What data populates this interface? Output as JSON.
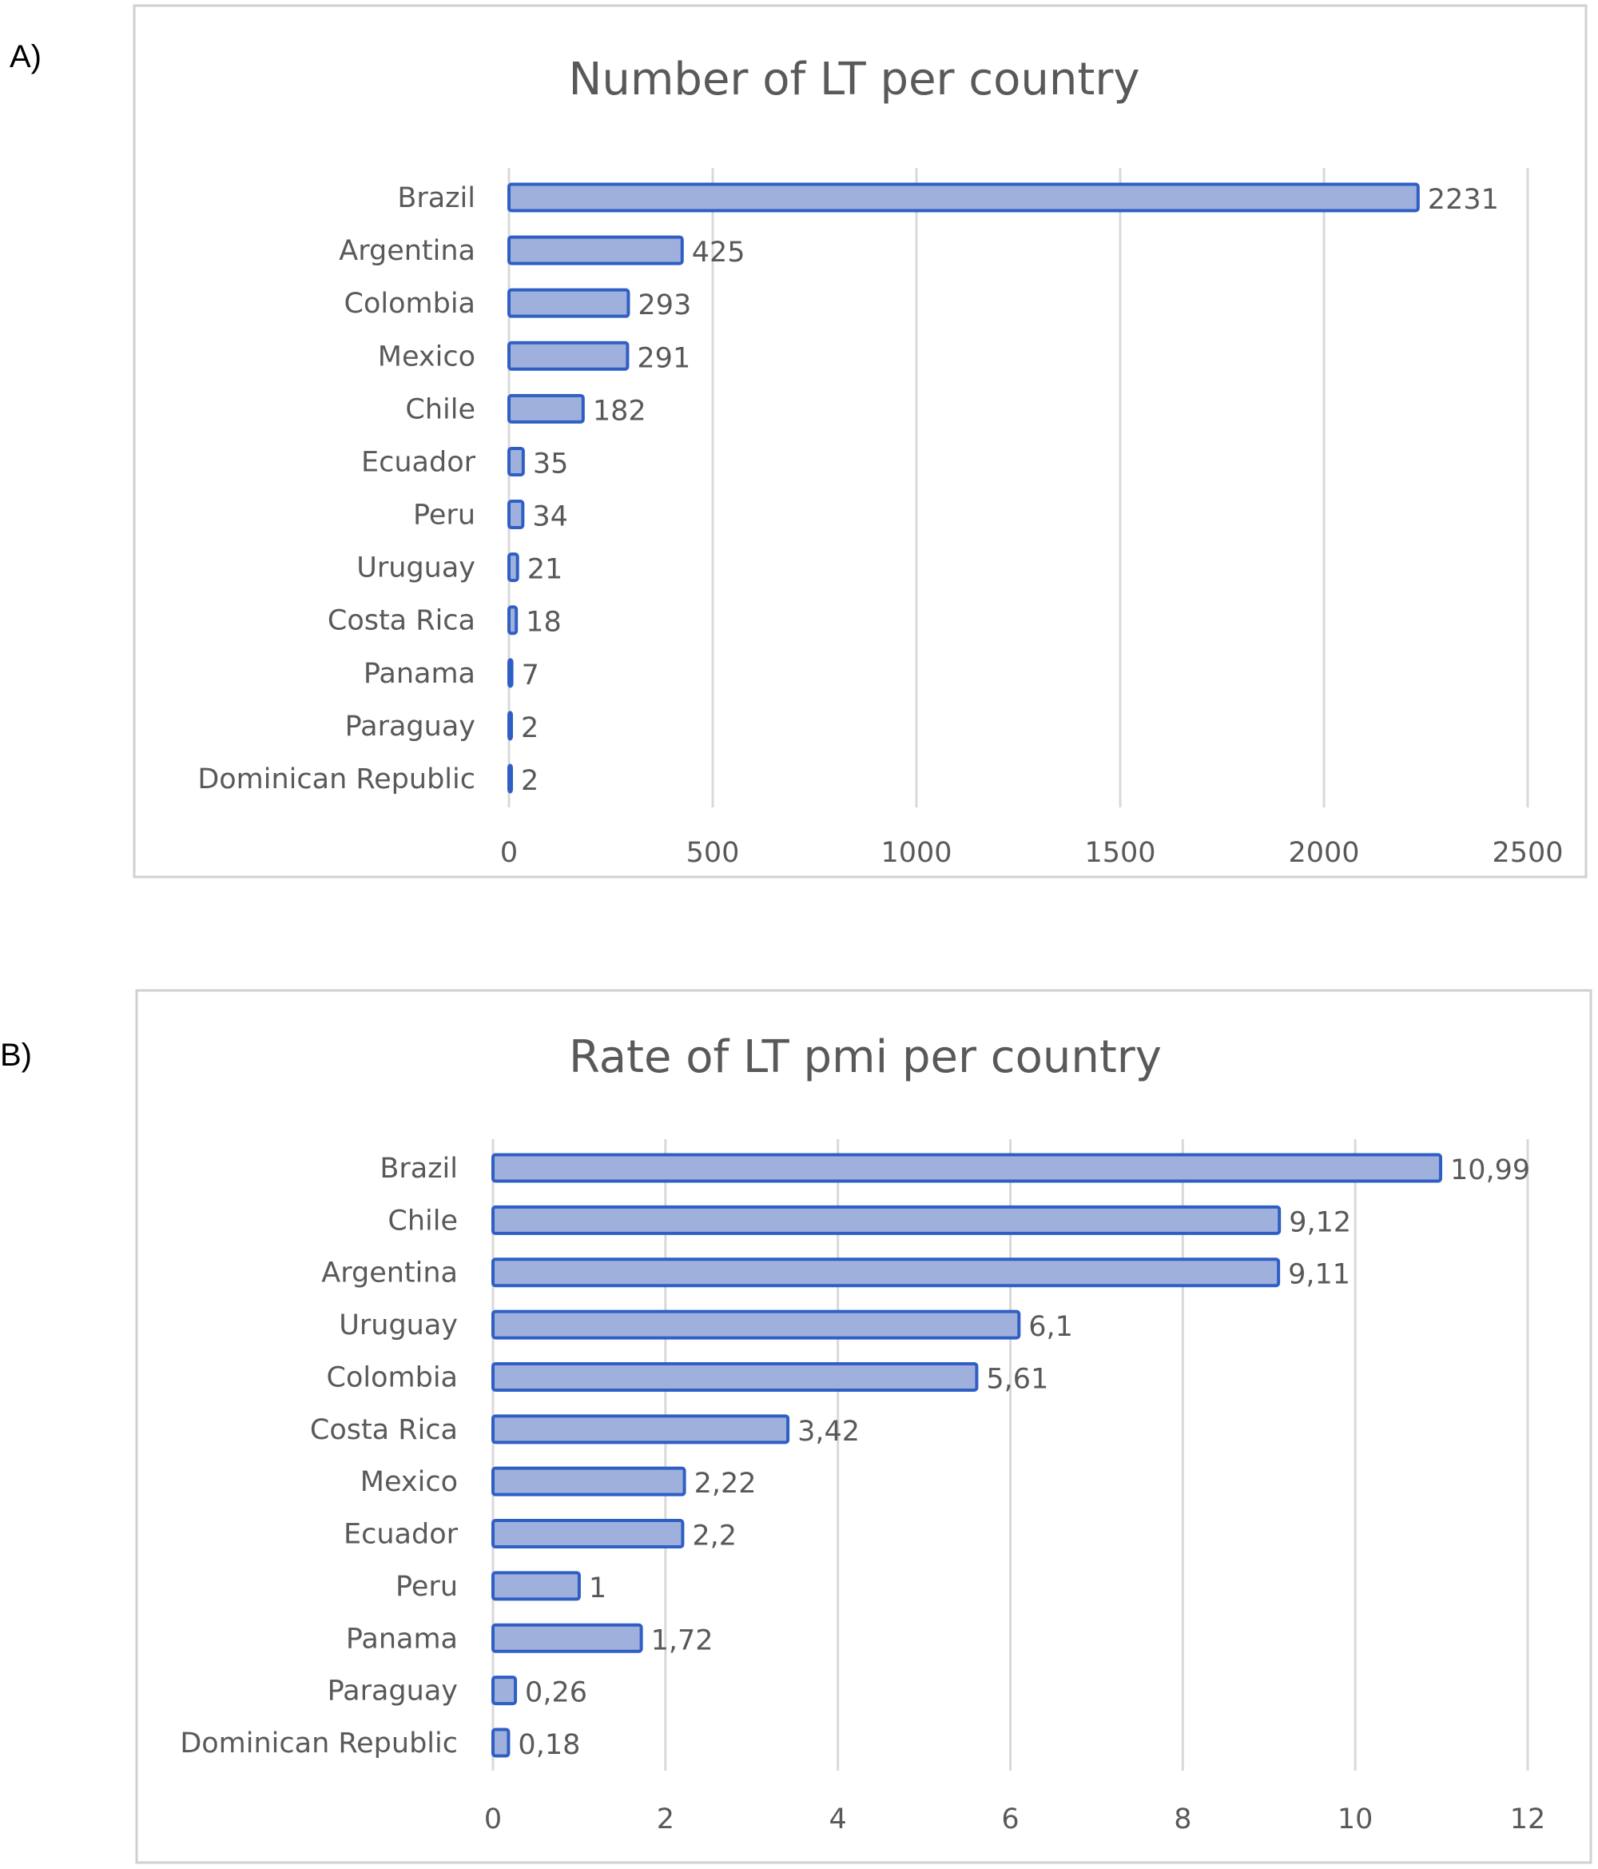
{
  "panel_labels": [
    "A)",
    "B)"
  ],
  "colors": {
    "bar_fill": "#9fb0dc",
    "bar_stroke": "#2f5fc4",
    "grid": "#d9d9d9",
    "text": "#595959",
    "border": "#d0d0d0"
  },
  "chart_data": [
    {
      "type": "bar",
      "orientation": "horizontal",
      "title": "Number of LT per country",
      "categories": [
        "Brazil",
        "Argentina",
        "Colombia",
        "Mexico",
        "Chile",
        "Ecuador",
        "Peru",
        "Uruguay",
        "Costa Rica",
        "Panama",
        "Paraguay",
        "Dominican Republic"
      ],
      "values": [
        2231,
        425,
        293,
        291,
        182,
        35,
        34,
        21,
        18,
        7,
        2,
        2
      ],
      "data_labels": [
        "2231",
        "425",
        "293",
        "291",
        "182",
        "35",
        "34",
        "21",
        "18",
        "7",
        "2",
        "2"
      ],
      "xlim": [
        0,
        2500
      ],
      "xticks": [
        "0",
        "500",
        "1000",
        "1500",
        "2000",
        "2500"
      ],
      "xtick_values": [
        0,
        500,
        1000,
        1500,
        2000,
        2500
      ],
      "grid": true,
      "xlabel": "",
      "ylabel": ""
    },
    {
      "type": "bar",
      "orientation": "horizontal",
      "title": "Rate of LT pmi per country",
      "categories": [
        "Brazil",
        "Chile",
        "Argentina",
        "Uruguay",
        "Colombia",
        "Costa Rica",
        "Mexico",
        "Ecuador",
        "Peru",
        "Panama",
        "Paraguay",
        "Dominican Republic"
      ],
      "values": [
        10.99,
        9.12,
        9.11,
        6.1,
        5.61,
        3.42,
        2.22,
        2.2,
        1,
        1.72,
        0.26,
        0.18
      ],
      "data_labels": [
        "10,99",
        "9,12",
        "9,11",
        "6,1",
        "5,61",
        "3,42",
        "2,22",
        "2,2",
        "1",
        "1,72",
        "0,26",
        "0,18"
      ],
      "xlim": [
        0,
        12
      ],
      "xticks": [
        "0",
        "2",
        "4",
        "6",
        "8",
        "10",
        "12"
      ],
      "xtick_values": [
        0,
        2,
        4,
        6,
        8,
        10,
        12
      ],
      "grid": true,
      "xlabel": "",
      "ylabel": ""
    }
  ]
}
